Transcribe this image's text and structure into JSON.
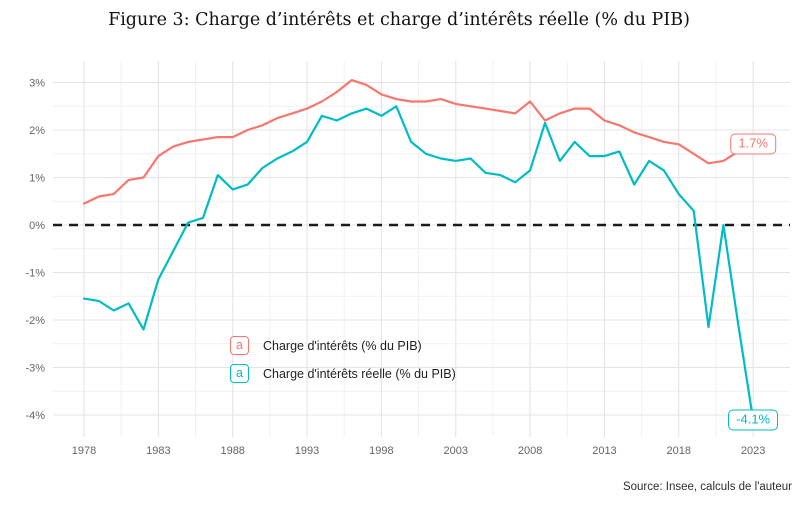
{
  "title": "Figure 3: Charge d’intérêts et charge d’intérêts réelle (% du PIB)",
  "source": "Source: Insee, calculs de l'auteur",
  "legend": {
    "key_glyph": "a",
    "items": [
      {
        "label": "Charge d'intérêts (% du PIB)",
        "color": "#F8766D"
      },
      {
        "label": "Charge d'intérêts réelle (% du PIB)",
        "color": "#00BCC4"
      }
    ]
  },
  "end_labels": {
    "nominal": "1.7%",
    "real": "-4.1%"
  },
  "colors": {
    "nominal_series": "#F8766D",
    "real_series": "#00BCC4",
    "zero_line": "#1a1a1a",
    "grid_major": "#e4e4e4",
    "grid_minor": "#f1f1f1",
    "axis_text": "#656565"
  },
  "chart_data": {
    "type": "line",
    "title": "Figure 3: Charge d’intérêts et charge d’intérêts réelle (% du PIB)",
    "xlabel": "",
    "ylabel": "",
    "grid": true,
    "legend_position": "inside-bottom-left",
    "zero_line_dashed": true,
    "xlim": [
      1975.8,
      2025.5
    ],
    "ylim": [
      -4.45,
      3.45
    ],
    "x_ticks": [
      {
        "value": 1978,
        "label": "1978"
      },
      {
        "value": 1983,
        "label": "1983"
      },
      {
        "value": 1988,
        "label": "1988"
      },
      {
        "value": 1993,
        "label": "1993"
      },
      {
        "value": 1998,
        "label": "1998"
      },
      {
        "value": 2003,
        "label": "2003"
      },
      {
        "value": 2008,
        "label": "2008"
      },
      {
        "value": 2013,
        "label": "2013"
      },
      {
        "value": 2018,
        "label": "2018"
      },
      {
        "value": 2023,
        "label": "2023"
      }
    ],
    "y_ticks": [
      {
        "value": 3,
        "label": "3%"
      },
      {
        "value": 2,
        "label": "2%"
      },
      {
        "value": 1,
        "label": "1%"
      },
      {
        "value": 0,
        "label": "0%"
      },
      {
        "value": -1,
        "label": "-1%"
      },
      {
        "value": -2,
        "label": "-2%"
      },
      {
        "value": -3,
        "label": "-3%"
      },
      {
        "value": -4,
        "label": "-4%"
      }
    ],
    "x": [
      1978,
      1979,
      1980,
      1981,
      1982,
      1983,
      1984,
      1985,
      1986,
      1987,
      1988,
      1989,
      1990,
      1991,
      1992,
      1993,
      1994,
      1995,
      1996,
      1997,
      1998,
      1999,
      2000,
      2001,
      2002,
      2003,
      2004,
      2005,
      2006,
      2007,
      2008,
      2009,
      2010,
      2011,
      2012,
      2013,
      2014,
      2015,
      2016,
      2017,
      2018,
      2019,
      2020,
      2021,
      2022,
      2023
    ],
    "series": [
      {
        "name": "Charge d'intérêts (% du PIB)",
        "color": "#F8766D",
        "end_label": "1.7%",
        "values": [
          0.45,
          0.6,
          0.65,
          0.95,
          1.0,
          1.45,
          1.65,
          1.75,
          1.8,
          1.85,
          1.85,
          2.0,
          2.1,
          2.25,
          2.35,
          2.45,
          2.6,
          2.8,
          3.05,
          2.95,
          2.75,
          2.65,
          2.6,
          2.6,
          2.65,
          2.55,
          2.5,
          2.45,
          2.4,
          2.35,
          2.6,
          2.2,
          2.35,
          2.45,
          2.45,
          2.2,
          2.1,
          1.95,
          1.85,
          1.75,
          1.7,
          1.5,
          1.3,
          1.35,
          1.55,
          1.7
        ]
      },
      {
        "name": "Charge d'intérêts réelle (% du PIB)",
        "color": "#00BCC4",
        "end_label": "-4.1%",
        "values": [
          -1.55,
          -1.6,
          -1.8,
          -1.65,
          -2.2,
          -1.15,
          -0.55,
          0.05,
          0.15,
          1.05,
          0.75,
          0.85,
          1.2,
          1.4,
          1.55,
          1.75,
          2.3,
          2.2,
          2.35,
          2.45,
          2.3,
          2.5,
          1.75,
          1.5,
          1.4,
          1.35,
          1.4,
          1.1,
          1.05,
          0.9,
          1.15,
          2.15,
          1.35,
          1.75,
          1.45,
          1.45,
          1.55,
          0.85,
          1.35,
          1.15,
          0.65,
          0.3,
          -2.15,
          0.0,
          -2.1,
          -4.1
        ]
      }
    ]
  }
}
